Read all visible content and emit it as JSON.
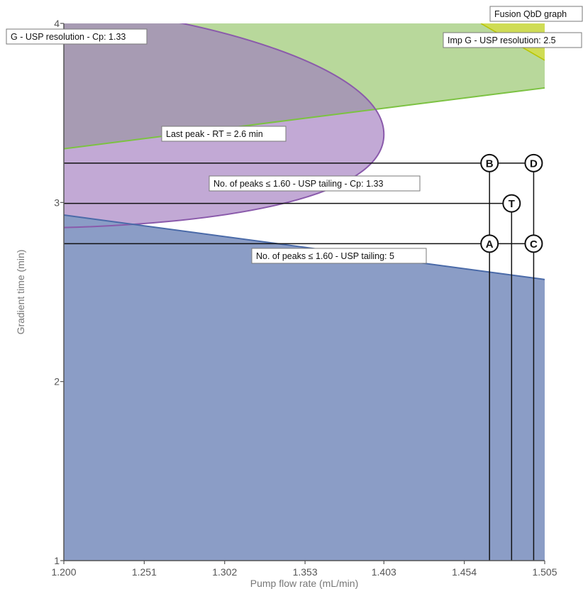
{
  "chart_data": {
    "type": "area",
    "title": "Fusion QbD graph",
    "xlabel": "Pump flow rate (mL/min)",
    "ylabel": "Gradient time (min)",
    "xlim": [
      1.2,
      1.505
    ],
    "ylim": [
      1,
      4
    ],
    "xticks": [
      1.2,
      1.251,
      1.302,
      1.353,
      1.403,
      1.454,
      1.505
    ],
    "xtick_labels": [
      "1.200",
      "1.251",
      "1.302",
      "1.353",
      "1.403",
      "1.454",
      "1.505"
    ],
    "yticks": [
      1,
      2,
      3,
      4
    ],
    "ytick_labels": [
      "1",
      "2",
      "3",
      "4"
    ],
    "regions": [
      {
        "label": "G - USP resolution - Cp: 1.33",
        "fill": "#b8d89b",
        "edge": "#7cc242",
        "boundary_y_at_xmin": 3.3,
        "boundary_y_at_xmax": 3.64
      },
      {
        "label": "Imp G - USP resolution: 2.5",
        "fill": "#cfdc55",
        "edge": "#b8c400"
      },
      {
        "label": "Last peak - RT = 2.6 min",
        "fill": "#a79bb3",
        "edge": "#8a5aab",
        "vertex": [
          1.403,
          3.38
        ],
        "y_at_xmin_upper": 4.1,
        "y_at_xmin_lower": 2.86
      },
      {
        "label": "No. of peaks ≤ 1.60 - USP tailing - Cp: 1.33",
        "fill": "#c2a9d5"
      },
      {
        "label": "No. of peaks ≤ 1.60 - USP tailing: 5",
        "fill": "#8b9dc6",
        "edge": "#4a6aa8",
        "boundary_y_at_xmin": 2.93,
        "boundary_y_at_xmax": 2.57
      }
    ],
    "design_points": [
      {
        "name": "A",
        "x": 1.47,
        "y": 2.77
      },
      {
        "name": "B",
        "x": 1.47,
        "y": 3.22
      },
      {
        "name": "C",
        "x": 1.498,
        "y": 2.77
      },
      {
        "name": "D",
        "x": 1.498,
        "y": 3.22
      },
      {
        "name": "T",
        "x": 1.484,
        "y": 2.995
      }
    ]
  }
}
